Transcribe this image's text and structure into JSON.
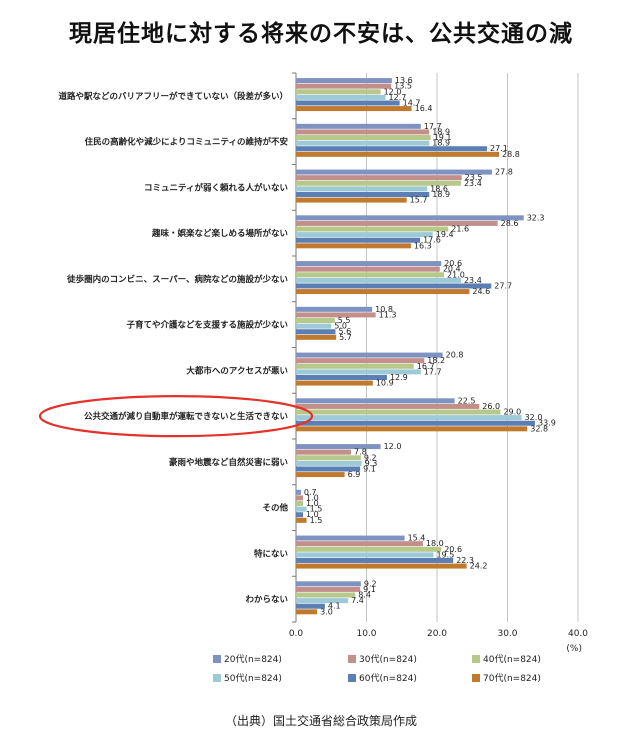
{
  "page": {
    "title": "現居住地に対する将来の不安は、公共交通の減",
    "source": "（出典）国土交通省総合政策局作成"
  },
  "colors": {
    "series": [
      "#7f93c3",
      "#c38f8b",
      "#b7c98a",
      "#9ecad8",
      "#5b7fb4",
      "#c07a30"
    ],
    "highlight": "#e4322b",
    "grid": "#aaaaaa"
  },
  "chart_data": {
    "type": "bar",
    "orientation": "horizontal",
    "unit": "(%)",
    "xlim": [
      0,
      40
    ],
    "xticks": [
      "0.0",
      "10.0",
      "20.0",
      "30.0",
      "40.0"
    ],
    "categories": [
      "道路や駅などのバリアフリーができていない（段差が多い）",
      "住民の高齢化や減少によりコミュニティの維持が不安",
      "コミュニティが弱く頼れる人がいない",
      "趣味・娯楽など楽しめる場所がない",
      "徒歩圏内のコンビニ、スーパー、病院などの施設が少ない",
      "子育てや介護などを支援する施設が少ない",
      "大都市へのアクセスが悪い",
      "公共交通が減り自動車が運転できないと生活できない",
      "豪雨や地震など自然災害に弱い",
      "その他",
      "特にない",
      "わからない"
    ],
    "highlighted_category": "公共交通が減り自動車が運転できないと生活できない",
    "series": [
      {
        "name": "20代(n=824)",
        "values": [
          13.6,
          17.7,
          27.8,
          32.3,
          20.6,
          10.8,
          20.8,
          22.5,
          12.0,
          0.7,
          15.4,
          9.2
        ]
      },
      {
        "name": "30代(n=824)",
        "values": [
          13.5,
          18.9,
          23.5,
          28.6,
          20.4,
          11.3,
          18.2,
          26.0,
          7.8,
          1.0,
          18.0,
          9.1
        ]
      },
      {
        "name": "40代(n=824)",
        "values": [
          12.0,
          19.1,
          23.4,
          21.6,
          21.0,
          5.5,
          16.7,
          29.0,
          9.2,
          1.0,
          20.6,
          8.4
        ]
      },
      {
        "name": "50代(n=824)",
        "values": [
          12.7,
          18.9,
          18.6,
          19.4,
          23.4,
          5.0,
          17.7,
          32.0,
          9.3,
          1.5,
          19.5,
          7.4
        ]
      },
      {
        "name": "60代(n=824)",
        "values": [
          14.7,
          27.1,
          18.9,
          17.6,
          27.7,
          5.6,
          12.9,
          33.9,
          9.1,
          1.0,
          22.3,
          4.1
        ]
      },
      {
        "name": "70代(n=824)",
        "values": [
          16.4,
          28.8,
          15.7,
          16.3,
          24.6,
          5.7,
          10.9,
          32.8,
          6.9,
          1.5,
          24.2,
          3.0
        ]
      }
    ]
  }
}
